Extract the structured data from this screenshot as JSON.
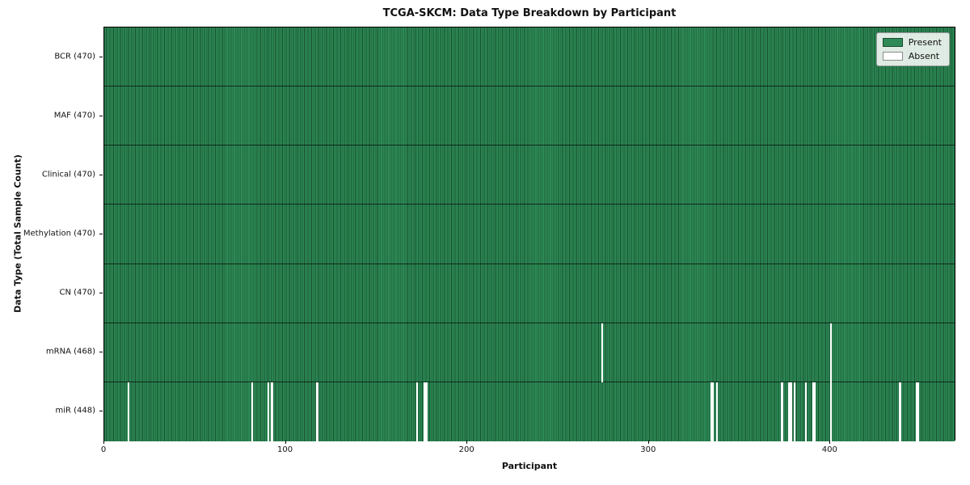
{
  "chart_data": {
    "type": "heatmap",
    "title": "TCGA-SKCM: Data Type Breakdown by Participant",
    "xlabel": "Participant",
    "ylabel": "Data Type (Total Sample Count)",
    "x_ticks": [
      0,
      100,
      200,
      300,
      400
    ],
    "x_range": [
      0,
      470
    ],
    "n_participants": 470,
    "legend": [
      {
        "label": "Present",
        "color": "#2e8b57"
      },
      {
        "label": "Absent",
        "color": "#ffffff"
      }
    ],
    "rows": [
      {
        "label": "BCR (470)",
        "data_type": "BCR",
        "present_count": 470,
        "absent_participants": []
      },
      {
        "label": "MAF (470)",
        "data_type": "MAF",
        "present_count": 470,
        "absent_participants": []
      },
      {
        "label": "Clinical (470)",
        "data_type": "Clinical",
        "present_count": 470,
        "absent_participants": []
      },
      {
        "label": "Methylation (470)",
        "data_type": "Methylation",
        "present_count": 470,
        "absent_participants": []
      },
      {
        "label": "CN (470)",
        "data_type": "CN",
        "present_count": 470,
        "absent_participants": []
      },
      {
        "label": "mRNA (468)",
        "data_type": "mRNA",
        "present_count": 468,
        "absent_participants": [
          274,
          400
        ]
      },
      {
        "label": "miR (448)",
        "data_type": "miR",
        "present_count": 448,
        "absent_participants": [
          13,
          81,
          90,
          92,
          117,
          172,
          176,
          177,
          334,
          335,
          337,
          373,
          377,
          378,
          380,
          386,
          390,
          391,
          400,
          438,
          447,
          448
        ]
      }
    ],
    "colors": {
      "present": "#2e8b57",
      "absent": "#ffffff",
      "cell_edge": "#17502f",
      "row_divider": "#1a1a1a",
      "plot_border": "#000000",
      "background": "#ffffff"
    }
  }
}
